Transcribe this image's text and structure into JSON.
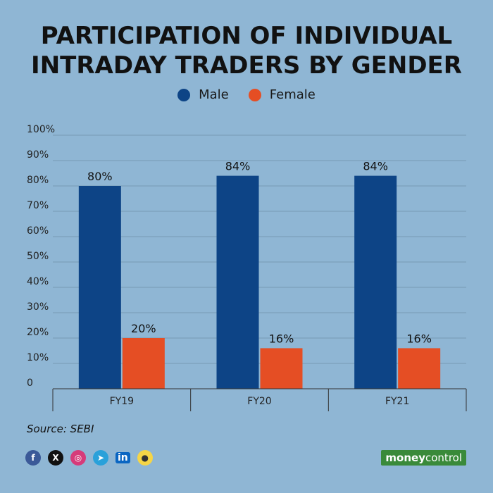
{
  "title": {
    "line1": "PARTICIPATION OF INDIVIDUAL",
    "line2": "INTRADAY TRADERS BY GENDER"
  },
  "legend": [
    {
      "label": "Male",
      "color": "#0d4486"
    },
    {
      "label": "Female",
      "color": "#e54e24"
    }
  ],
  "chart_data": {
    "type": "bar",
    "title": "PARTICIPATION OF INDIVIDUAL INTRADAY TRADERS BY GENDER",
    "categories": [
      "FY19",
      "FY20",
      "FY21"
    ],
    "series": [
      {
        "name": "Male",
        "values": [
          80,
          84,
          84
        ],
        "labels": [
          "80%",
          "84%",
          "84%"
        ],
        "color": "#0d4486"
      },
      {
        "name": "Female",
        "values": [
          20,
          16,
          16
        ],
        "labels": [
          "20%",
          "16%",
          "16%"
        ],
        "color": "#e54e24"
      }
    ],
    "y_ticks": [
      "0",
      "10%",
      "20%",
      "30%",
      "40%",
      "50%",
      "60%",
      "70%",
      "80%",
      "90%",
      "100%"
    ],
    "ylim": [
      0,
      100
    ],
    "xlabel": "",
    "ylabel": "",
    "grid": true,
    "legend_position": "top-center"
  },
  "source": "Source: SEBI",
  "social_icons": [
    "facebook-icon",
    "x-icon",
    "instagram-icon",
    "telegram-icon",
    "linkedin-icon",
    "koo-icon"
  ],
  "social_glyphs": {
    "facebook": "f",
    "x": "X",
    "instagram": "◎",
    "telegram": "➤",
    "linkedin": "in",
    "koo": "●"
  },
  "brand": {
    "part1": "money",
    "part2": "control"
  }
}
